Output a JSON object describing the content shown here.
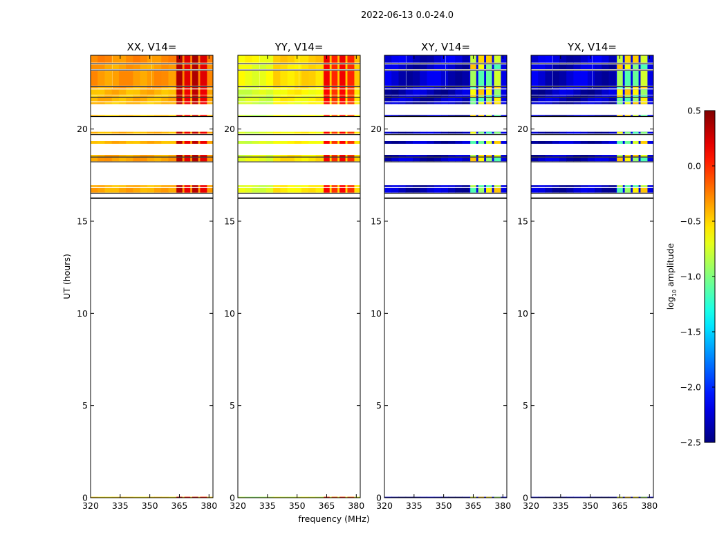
{
  "chart_data": {
    "type": "heatmap",
    "suptitle": "2022-06-13 0.0-24.0",
    "xlabel": "frequency (MHz)",
    "ylabel": "UT (hours)",
    "xlim": [
      320,
      382
    ],
    "ylim": [
      0,
      24
    ],
    "xticks": [
      "320",
      "335",
      "350",
      "365",
      "380"
    ],
    "xtick_values": [
      320,
      335,
      350,
      365,
      380
    ],
    "yticks": [
      "0",
      "5",
      "10",
      "15",
      "20"
    ],
    "ytick_values": [
      0,
      5,
      10,
      15,
      20
    ],
    "colorbar": {
      "label": "log",
      "label_sub": "10",
      "label_rest": " amplitude",
      "min": -2.5,
      "max": 0.5,
      "ticks": [
        "0.5",
        "0.0",
        "−0.5",
        "−1.0",
        "−1.5",
        "−2.0",
        "−2.5"
      ],
      "tick_values": [
        0.5,
        0.0,
        -0.5,
        -1.0,
        -1.5,
        -2.0,
        -2.5
      ],
      "colormap": "jet"
    },
    "panels": [
      {
        "title": "XX, V14=",
        "base": -0.35,
        "hot": 0.25,
        "band_mode": "hot"
      },
      {
        "title": "YY, V14=",
        "base": -0.55,
        "hot": 0.05,
        "band_mode": "hot"
      },
      {
        "title": "XY, V14=",
        "base": -2.3,
        "hot": -0.8,
        "band_mode": "mixed"
      },
      {
        "title": "YX, V14=",
        "base": -2.3,
        "hot": -0.8,
        "band_mode": "mixed"
      }
    ],
    "data_rows_ut": [
      {
        "start": 23.6,
        "end": 24.0,
        "level": 0.1
      },
      {
        "start": 23.25,
        "end": 23.5,
        "level": 0.0
      },
      {
        "start": 22.35,
        "end": 23.15,
        "level": 0.05
      },
      {
        "start": 22.2,
        "end": 22.3,
        "level": 0.0
      },
      {
        "start": 21.85,
        "end": 22.15,
        "level": -0.1
      },
      {
        "start": 21.75,
        "end": 21.82,
        "level": -0.15
      },
      {
        "start": 21.5,
        "end": 21.7,
        "level": -0.1
      },
      {
        "start": 21.35,
        "end": 21.45,
        "level": -0.15
      },
      {
        "start": 20.7,
        "end": 20.76,
        "level": -0.2
      },
      {
        "start": 19.75,
        "end": 19.85,
        "level": -0.1
      },
      {
        "start": 19.2,
        "end": 19.35,
        "level": -0.1
      },
      {
        "start": 18.5,
        "end": 18.6,
        "level": -0.05
      },
      {
        "start": 18.25,
        "end": 18.45,
        "level": 0.0
      },
      {
        "start": 16.85,
        "end": 16.95,
        "level": -0.1
      },
      {
        "start": 16.55,
        "end": 16.8,
        "level": -0.05
      },
      {
        "start": 0.0,
        "end": 0.05,
        "level": -0.3
      }
    ],
    "black_lines_ut": [
      23.55,
      23.2,
      22.3,
      21.72,
      20.68,
      19.7,
      18.48,
      18.22,
      16.52,
      16.25
    ],
    "hot_band_mhz": [
      [
        363.5,
        366.5
      ],
      [
        367.5,
        370.5
      ],
      [
        371.5,
        374.5
      ],
      [
        375.5,
        379.0
      ]
    ],
    "vertical_lines_mhz": [
      331,
      351
    ]
  }
}
